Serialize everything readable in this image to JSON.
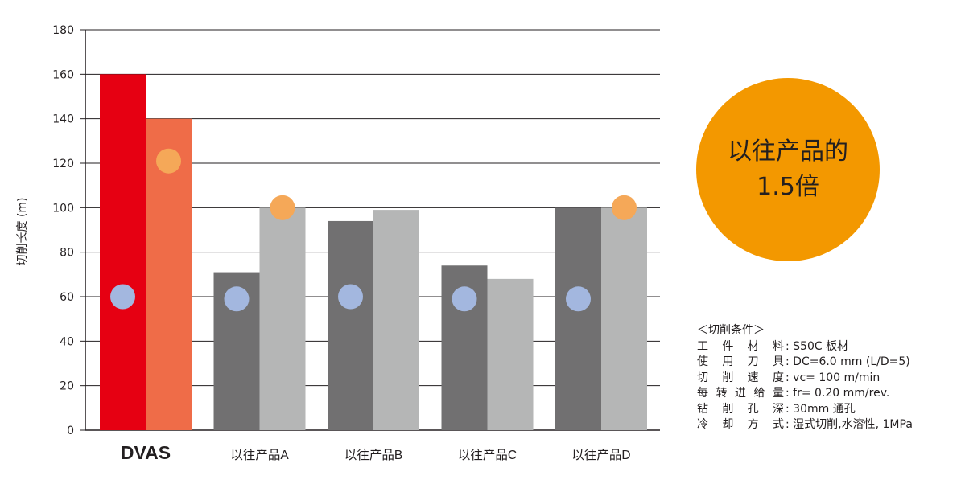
{
  "chart_data": {
    "type": "bar",
    "ylabel": "切削长度 (m)",
    "ylim": [
      0,
      180
    ],
    "yticks": [
      0,
      20,
      40,
      60,
      80,
      100,
      120,
      140,
      160,
      180
    ],
    "grid": true,
    "categories": [
      "DVAS",
      "以往产品A",
      "以往产品B",
      "以往产品C",
      "以往产品D"
    ],
    "series": [
      {
        "values": [
          160,
          71,
          94,
          74,
          100
        ],
        "colors": [
          "#e60012",
          "#717071",
          "#717071",
          "#717071",
          "#717071"
        ]
      },
      {
        "values": [
          140,
          100,
          99,
          68,
          100
        ],
        "colors": [
          "#ef6c48",
          "#b5b6b6",
          "#b5b6b6",
          "#b5b6b6",
          "#b5b6b6"
        ]
      }
    ],
    "markers": [
      {
        "category": "DVAS",
        "series": 0,
        "value": 60,
        "color": "#a3b7df"
      },
      {
        "category": "DVAS",
        "series": 1,
        "value": 121,
        "color": "#f5a858"
      },
      {
        "category": "以往产品A",
        "series": 0,
        "value": 59,
        "color": "#a3b7df"
      },
      {
        "category": "以往产品A",
        "series": 1,
        "value": 100,
        "color": "#f5a858"
      },
      {
        "category": "以往产品B",
        "series": 0,
        "value": 60,
        "color": "#a3b7df"
      },
      {
        "category": "以往产品C",
        "series": 0,
        "value": 59,
        "color": "#a3b7df"
      },
      {
        "category": "以往产品D",
        "series": 0,
        "value": 59,
        "color": "#a3b7df"
      },
      {
        "category": "以往产品D",
        "series": 1,
        "value": 100,
        "color": "#f5a858"
      }
    ]
  },
  "badge": {
    "line1": "以往产品的",
    "line2": "1.5倍",
    "color": "#f39800"
  },
  "conditions": {
    "title": "＜切削条件＞",
    "rows": [
      {
        "label": "工件材料",
        "value": ": S50C 板材"
      },
      {
        "label": "使用刀具",
        "value": ": DC=6.0 mm (L/D=5)"
      },
      {
        "label": "切削速度",
        "value": ": vc= 100 m/min"
      },
      {
        "label": "每转进给量",
        "value": ": fr= 0.20 mm/rev."
      },
      {
        "label": "钻削孔深",
        "value": ": 30mm 通孔"
      },
      {
        "label": "冷却方式",
        "value": ": 湿式切削,水溶性, 1MPa"
      }
    ]
  }
}
